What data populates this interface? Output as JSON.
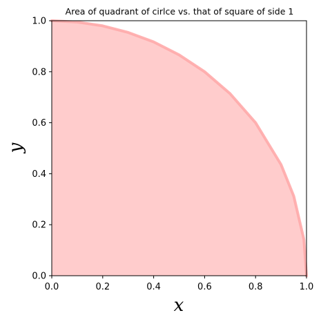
{
  "chart_data": {
    "type": "area",
    "title": "Area of quadrant of cirlce vs. that of square of side 1",
    "xlabel": "x",
    "ylabel": "y",
    "xlim": [
      0.0,
      1.0
    ],
    "ylim": [
      0.0,
      1.0
    ],
    "xticks": [
      "0.0",
      "0.2",
      "0.4",
      "0.6",
      "0.8",
      "1.0"
    ],
    "yticks": [
      "0.0",
      "0.2",
      "0.4",
      "0.6",
      "0.8",
      "1.0"
    ],
    "grid": false,
    "series": [
      {
        "curve": "y = sqrt(1 - x^2)",
        "x": [
          0.0,
          0.1,
          0.2,
          0.3,
          0.4,
          0.5,
          0.6,
          0.7,
          0.8,
          0.9,
          0.95,
          0.99,
          1.0
        ],
        "y": [
          1.0,
          0.995,
          0.98,
          0.954,
          0.917,
          0.866,
          0.8,
          0.714,
          0.6,
          0.436,
          0.312,
          0.141,
          0.0
        ],
        "fill_color": "#ffcccc",
        "line_color": "#ffaaaa"
      }
    ]
  }
}
